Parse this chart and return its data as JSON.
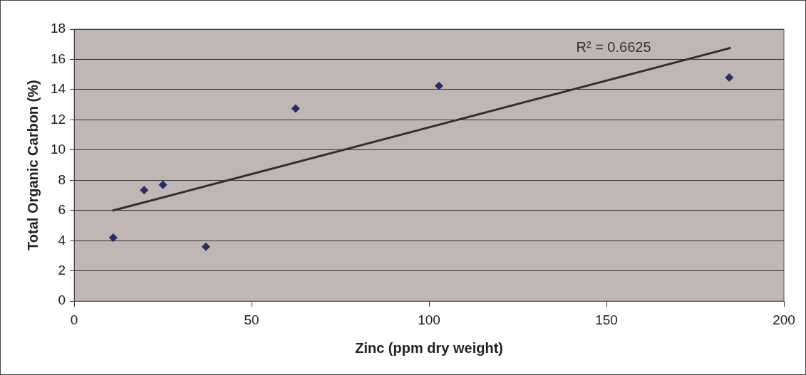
{
  "chart_data": {
    "type": "scatter",
    "xlabel": "Zinc (ppm dry weight)",
    "ylabel": "Total Organic Carbon (%)",
    "series": [
      {
        "color": "#2b2b66",
        "x": [
          11.0,
          19.7,
          25.0,
          37.1,
          62.4,
          102.8,
          184.6
        ],
        "values": [
          4.2,
          7.35,
          7.7,
          3.6,
          12.75,
          14.25,
          14.8
        ],
        "marker": "diamond"
      },
      {
        "type": "line",
        "color": "#2f2f2f",
        "x": [
          11.0,
          184.8
        ],
        "values": [
          6.0,
          16.75
        ],
        "marker": "none"
      }
    ],
    "xlim": [
      0,
      200
    ],
    "xticks": [
      0,
      50,
      100,
      150,
      200
    ],
    "ylim": [
      0,
      18
    ],
    "yticks": [
      0,
      2,
      4,
      6,
      8,
      10,
      12,
      14,
      16,
      18
    ],
    "grid": "y",
    "legend": false,
    "annotations": [
      "R² = 0.6625"
    ]
  }
}
